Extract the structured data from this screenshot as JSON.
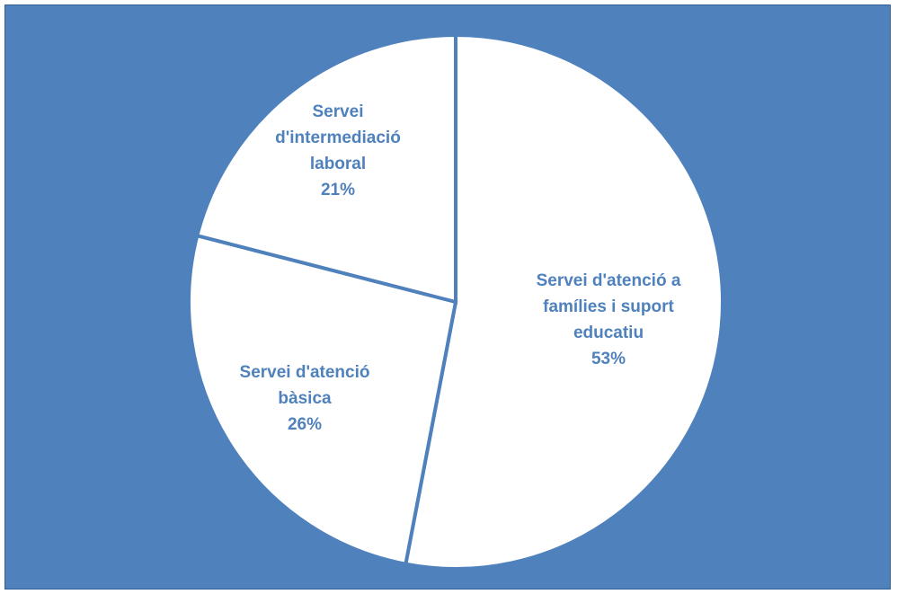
{
  "chart_data": {
    "type": "pie",
    "title": "",
    "background_color": "#4f81bd",
    "slice_color": "#ffffff",
    "border_color": "#4f81bd",
    "label_color": "#4f81bd",
    "start_angle_deg": 0,
    "direction": "clockwise",
    "slices": [
      {
        "label_lines": [
          "Servei d'atenció a",
          "famílies i suport",
          "educatiu"
        ],
        "value": 53,
        "value_label": "53%"
      },
      {
        "label_lines": [
          "Servei d'atenció",
          "bàsica"
        ],
        "value": 26,
        "value_label": "26%"
      },
      {
        "label_lines": [
          "Servei",
          "d'intermediació",
          "laboral"
        ],
        "value": 21,
        "value_label": "21%"
      }
    ]
  }
}
